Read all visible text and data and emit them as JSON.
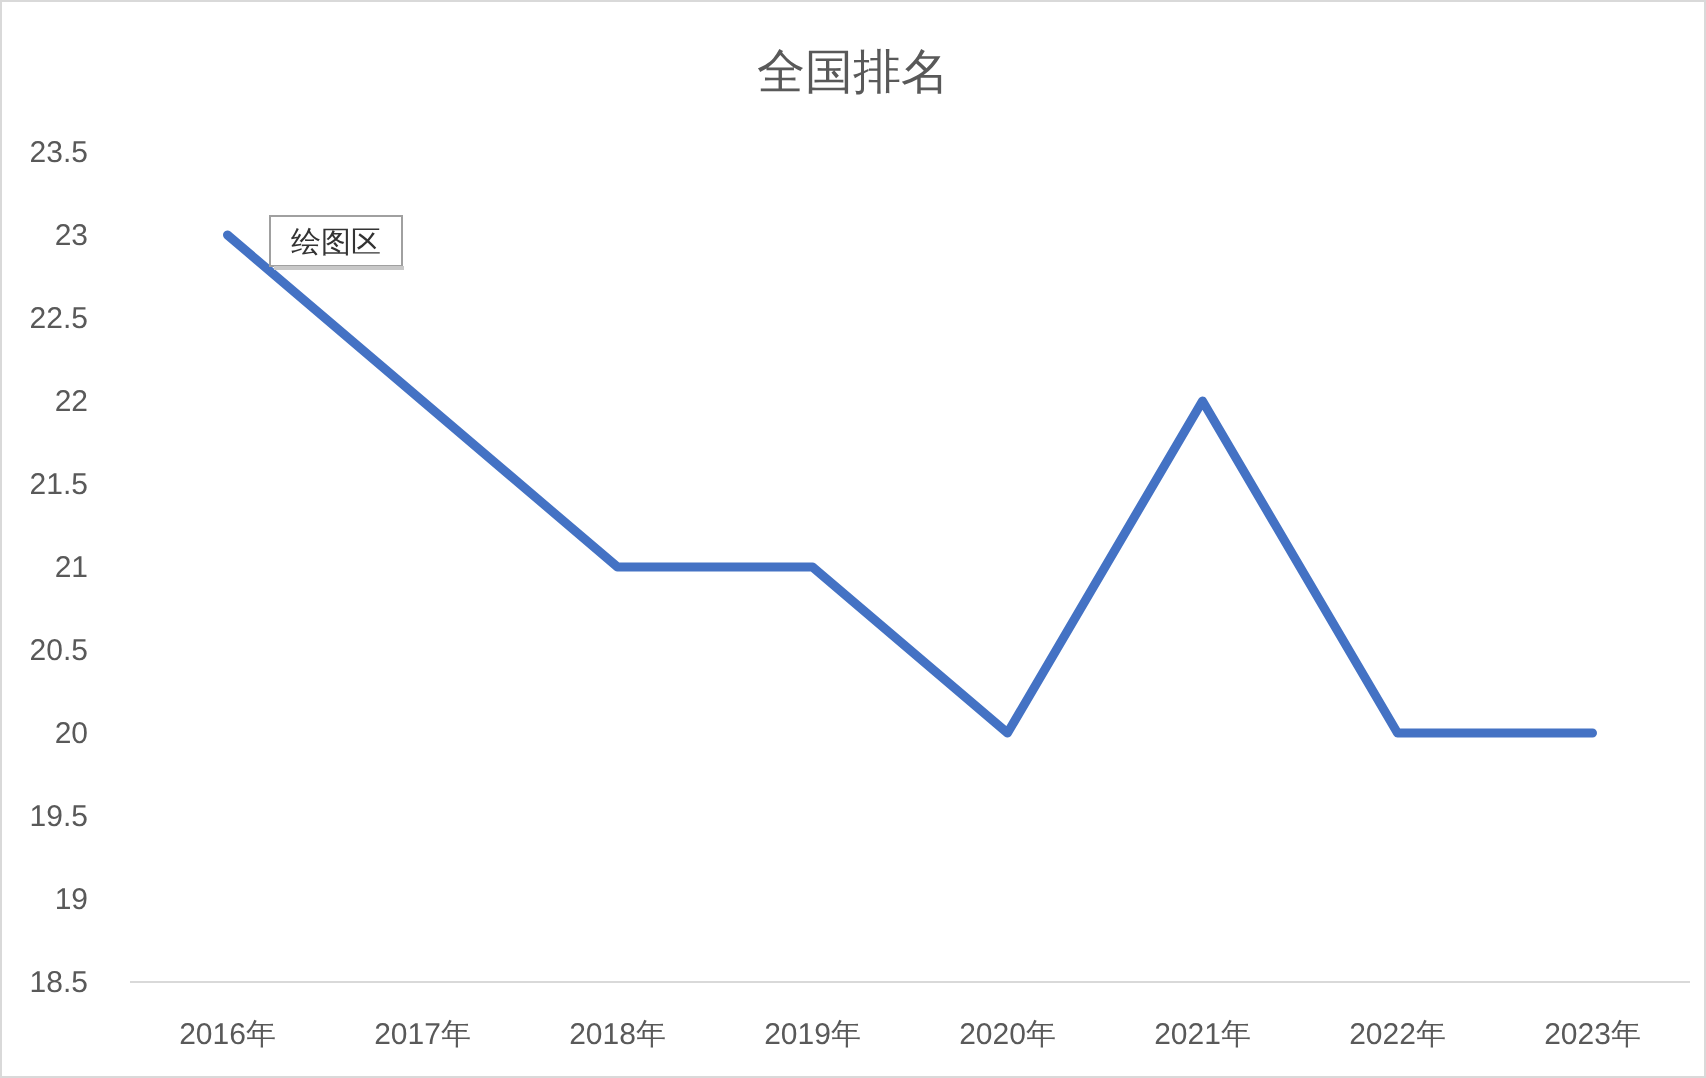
{
  "chart_data": {
    "type": "line",
    "title": "全国排名",
    "categories": [
      "2016年",
      "2017年",
      "2018年",
      "2019年",
      "2020年",
      "2021年",
      "2022年",
      "2023年"
    ],
    "series": [
      {
        "color": "#4472c4",
        "values": [
          23,
          22,
          21,
          21,
          20,
          22,
          20,
          20
        ]
      }
    ],
    "ylim": [
      18.5,
      23.5
    ],
    "yticks": [
      18.5,
      19,
      19.5,
      20,
      20.5,
      21,
      21.5,
      22,
      22.5,
      23,
      23.5
    ],
    "marker": "none",
    "line_style": "solid",
    "annotations": [
      "绘图区"
    ]
  }
}
